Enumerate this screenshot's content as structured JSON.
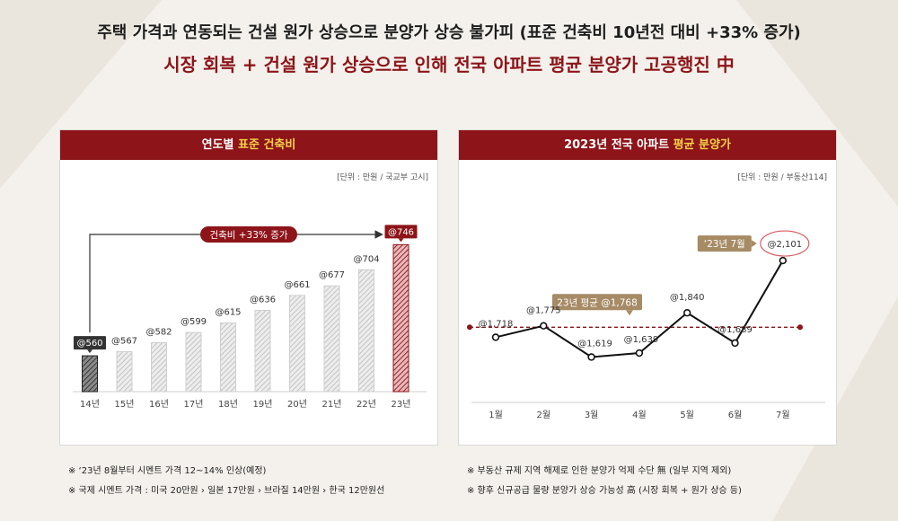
{
  "headline": {
    "line1": "주택 가격과 연동되는 건설 원가 상승으로 분양가 상승 불가피 (표준 건축비 10년전 대비 +33% 증가)",
    "line2": "시장 회복 + 건설 원가 상승으로 인해 전국 아파트 평균 분양가 고공행진 中"
  },
  "colors": {
    "brand": "#8d1419",
    "highlight": "#f6d24a",
    "tan": "#a68b65"
  },
  "left_panel": {
    "title_prefix": "연도별 ",
    "title_highlight": "표준 건축비",
    "unit": "[단위 : 만원 / 국교부 고시]"
  },
  "right_panel": {
    "title_prefix": "2023년 전국 아파트 ",
    "title_highlight": "평균 분양가",
    "unit": "[단위 : 만원 / 부동산114]"
  },
  "notes_left": [
    "※ ‘23년 8월부터 시멘트 가격 12~14% 인상(예정)",
    "※ 국제 시멘트 가격 : 미국 20만원 › 일본 17만원 › 브라질 14만원 › 한국 12만원선"
  ],
  "notes_right": [
    "※ 부동산 규제 지역 해제로 인한 분양가 억제 수단 無 (일부 지역 제외)",
    "※ 향후 신규공급 물량 분양가 상승 가능성 高 (시장 회복 + 원가 상승 등)"
  ],
  "chart_data": [
    {
      "type": "bar",
      "categories": [
        "14년",
        "15년",
        "16년",
        "17년",
        "18년",
        "19년",
        "20년",
        "21년",
        "22년",
        "23년"
      ],
      "values": [
        560,
        567,
        582,
        599,
        615,
        636,
        661,
        677,
        704,
        746
      ],
      "labels": [
        "@560",
        "@567",
        "@582",
        "@599",
        "@615",
        "@636",
        "@661",
        "@677",
        "@704",
        "@746"
      ],
      "annotation": "건축비 +33% 증가",
      "ylim": [
        500,
        760
      ],
      "grid": false
    },
    {
      "type": "line",
      "categories": [
        "1월",
        "2월",
        "3월",
        "4월",
        "5월",
        "6월",
        "7월"
      ],
      "values": [
        1718,
        1775,
        1619,
        1639,
        1840,
        1689,
        2101
      ],
      "labels": [
        "@1,718",
        "@1,775",
        "@1,619",
        "@1,639",
        "@1,840",
        "@1,689",
        "@2,101"
      ],
      "average": 1768,
      "average_label": "23년 평균 @1,768",
      "peak_callout": "‘23년 7월",
      "ylim": [
        1500,
        2200
      ],
      "grid": false
    }
  ]
}
